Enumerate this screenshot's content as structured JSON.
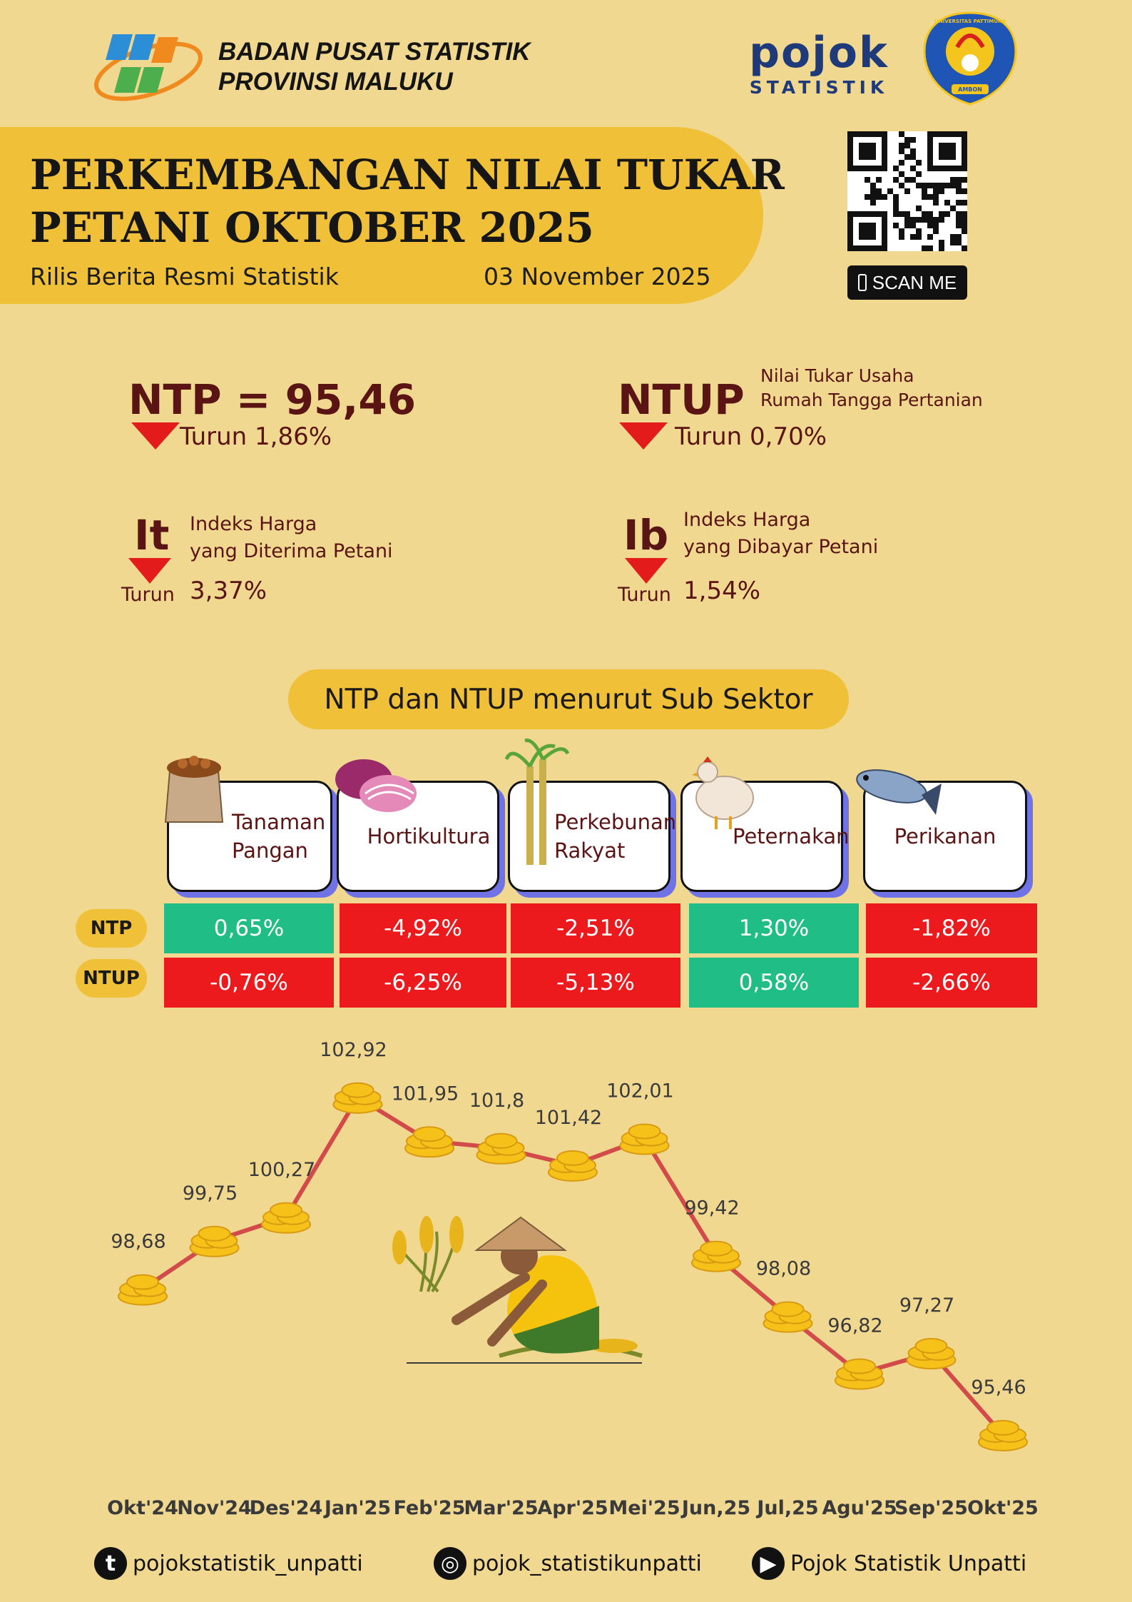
{
  "header": {
    "org_line1": "BADAN PUSAT STATISTIK",
    "org_line2": "PROVINSI MALUKU",
    "pojok_word": "pojok",
    "pojok_sub": "STATISTIK",
    "unpatti_top": "UNIVERSITAS PATTIMURA",
    "unpatti_bottom": "AMBON"
  },
  "title": {
    "line1": "PERKEMBANGAN NILAI TUKAR",
    "line2": "PETANI OKTOBER 2025",
    "subtitle": "Rilis Berita Resmi Statistik",
    "date": "03 November 2025"
  },
  "qr": {
    "scan_label": "SCAN ME"
  },
  "indicators": {
    "ntp": {
      "label": "NTP = 95,46",
      "change": "Turun 1,86%"
    },
    "ntup": {
      "label": "NTUP",
      "desc1": "Nilai Tukar  Usaha",
      "desc2": "Rumah Tangga Pertanian",
      "change": "Turun 0,70%"
    },
    "it": {
      "label": "It",
      "desc1": "Indeks Harga",
      "desc2": "yang Diterima Petani",
      "turun": "Turun",
      "value": "3,37%"
    },
    "ib": {
      "label": "Ib",
      "desc1": "Indeks Harga",
      "desc2": "yang Dibayar Petani",
      "turun": "Turun",
      "value": "1,54%"
    }
  },
  "subsektor": {
    "heading": "NTP dan NTUP menurut Sub Sektor",
    "sectors": [
      {
        "line1": "Tanaman",
        "line2": "Pangan"
      },
      {
        "line1": "Hortikultura",
        "line2": ""
      },
      {
        "line1": "Perkebunan",
        "line2": "Rakyat"
      },
      {
        "line1": "Peternakan",
        "line2": ""
      },
      {
        "line1": "Perikanan",
        "line2": ""
      }
    ],
    "row_labels": {
      "ntp": "NTP",
      "ntup": "NTUP"
    },
    "ntp_values": [
      "0,65%",
      "-4,92%",
      "-2,51%",
      "1,30%",
      "-1,82%"
    ],
    "ntup_values": [
      "-0,76%",
      "-6,25%",
      "-5,13%",
      "0,58%",
      "-2,66%"
    ],
    "colors": {
      "positive": "#20bd86",
      "negative": "#ec1a1d"
    }
  },
  "chart_data": {
    "type": "line",
    "categories": [
      "Okt'24",
      "Nov'24",
      "Des'24",
      "Jan'25",
      "Feb'25",
      "Mar'25",
      "Apr'25",
      "Mei'25",
      "Jun,25",
      "Jul,25",
      "Agu'25",
      "Sep'25",
      "Okt'25"
    ],
    "values": [
      98.68,
      99.75,
      100.27,
      102.92,
      101.95,
      101.8,
      101.42,
      102.01,
      99.42,
      98.08,
      96.82,
      97.27,
      95.46
    ],
    "value_labels": [
      "98,68",
      "99,75",
      "100,27",
      "102,92",
      "101,95",
      "101,8",
      "101,42",
      "102,01",
      "99,42",
      "98,08",
      "96,82",
      "97,27",
      "95,46"
    ],
    "ylim": [
      95.0,
      103.2
    ],
    "line_color": "#d24a4a",
    "grid": false,
    "legend": "none"
  },
  "footer": {
    "tiktok": "pojokstatistik_unpatti",
    "instagram": "pojok_statistikunpatti",
    "youtube": "Pojok Statistik Unpatti"
  }
}
